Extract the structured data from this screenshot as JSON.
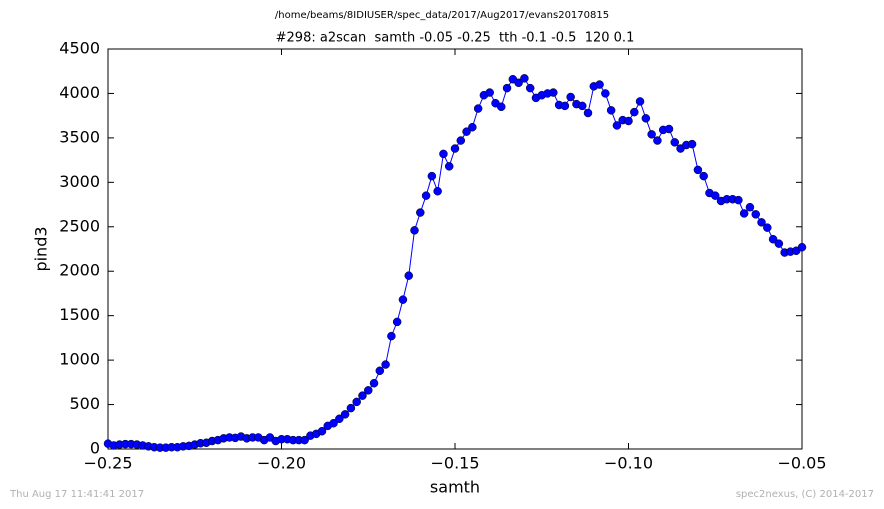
{
  "chart_data": {
    "type": "line",
    "title": "/home/beams/8IDIUSER/spec_data/2017/Aug2017/evans20170815",
    "subtitle": "#298: a2scan  samth -0.05 -0.25  tth -0.1 -0.5  120 0.1",
    "x_label": "samth",
    "y_label": "pind3",
    "timestamp": "Thu Aug 17 11:41:41 2017",
    "credit": "spec2nexus, (C) 2014-2017",
    "x": [
      -0.25,
      -0.24833,
      -0.24667,
      -0.245,
      -0.24333,
      -0.24167,
      -0.24,
      -0.23833,
      -0.23667,
      -0.235,
      -0.23333,
      -0.23167,
      -0.23,
      -0.22833,
      -0.22667,
      -0.225,
      -0.22333,
      -0.22167,
      -0.22,
      -0.21833,
      -0.21667,
      -0.215,
      -0.21333,
      -0.21167,
      -0.21,
      -0.20833,
      -0.20667,
      -0.205,
      -0.20333,
      -0.20167,
      -0.2,
      -0.19833,
      -0.19667,
      -0.195,
      -0.19333,
      -0.19167,
      -0.19,
      -0.18833,
      -0.18667,
      -0.185,
      -0.18333,
      -0.18167,
      -0.18,
      -0.17833,
      -0.17667,
      -0.175,
      -0.17333,
      -0.17167,
      -0.17,
      -0.16833,
      -0.16667,
      -0.165,
      -0.16333,
      -0.16167,
      -0.16,
      -0.15833,
      -0.15667,
      -0.155,
      -0.15333,
      -0.15167,
      -0.15,
      -0.14833,
      -0.14667,
      -0.145,
      -0.14333,
      -0.14167,
      -0.14,
      -0.13833,
      -0.13667,
      -0.135,
      -0.13333,
      -0.13167,
      -0.13,
      -0.12833,
      -0.12667,
      -0.125,
      -0.12333,
      -0.12167,
      -0.12,
      -0.11833,
      -0.11667,
      -0.115,
      -0.11333,
      -0.11167,
      -0.11,
      -0.10833,
      -0.10667,
      -0.105,
      -0.10333,
      -0.10167,
      -0.1,
      -0.09833,
      -0.09667,
      -0.095,
      -0.09333,
      -0.09167,
      -0.09,
      -0.08833,
      -0.08667,
      -0.085,
      -0.08333,
      -0.08167,
      -0.08,
      -0.07833,
      -0.07667,
      -0.075,
      -0.07333,
      -0.07167,
      -0.07,
      -0.06833,
      -0.06667,
      -0.065,
      -0.06333,
      -0.06167,
      -0.06,
      -0.05833,
      -0.05667,
      -0.055,
      -0.05333,
      -0.05167,
      -0.05
    ],
    "series": [
      {
        "color": "#0000ff",
        "values": [
          60,
          40,
          50,
          55,
          55,
          50,
          40,
          30,
          20,
          15,
          15,
          20,
          20,
          30,
          35,
          50,
          65,
          70,
          90,
          100,
          120,
          130,
          125,
          140,
          120,
          130,
          130,
          100,
          130,
          90,
          110,
          110,
          100,
          100,
          100,
          150,
          170,
          200,
          260,
          290,
          340,
          390,
          460,
          530,
          600,
          660,
          740,
          880,
          950,
          1270,
          1430,
          1680,
          1950,
          2460,
          2660,
          2850,
          3070,
          2900,
          3320,
          3180,
          3380,
          3470,
          3570,
          3620,
          3830,
          3980,
          4010,
          3890,
          3850,
          4060,
          4160,
          4120,
          4170,
          4060,
          3950,
          3980,
          4000,
          4010,
          3870,
          3860,
          3960,
          3880,
          3860,
          3780,
          4080,
          4100,
          4000,
          3810,
          3640,
          3700,
          3690,
          3790,
          3910,
          3720,
          3540,
          3470,
          3590,
          3600,
          3450,
          3380,
          3420,
          3430,
          3140,
          3070,
          2880,
          2850,
          2790,
          2810,
          2810,
          2800,
          2650,
          2720,
          2640,
          2550,
          2490,
          2360,
          2310,
          2210,
          2220,
          2230,
          2270
        ]
      }
    ],
    "xlim": [
      -0.25,
      -0.05
    ],
    "ylim": [
      0,
      4500
    ],
    "xticks": [
      {
        "value": -0.25,
        "label": "−0.25"
      },
      {
        "value": -0.2,
        "label": "−0.20"
      },
      {
        "value": -0.15,
        "label": "−0.15"
      },
      {
        "value": -0.1,
        "label": "−0.10"
      },
      {
        "value": -0.05,
        "label": "−0.05"
      }
    ],
    "yticks": [
      0,
      500,
      1000,
      1500,
      2000,
      2500,
      3000,
      3500,
      4000,
      4500
    ],
    "grid": false
  }
}
